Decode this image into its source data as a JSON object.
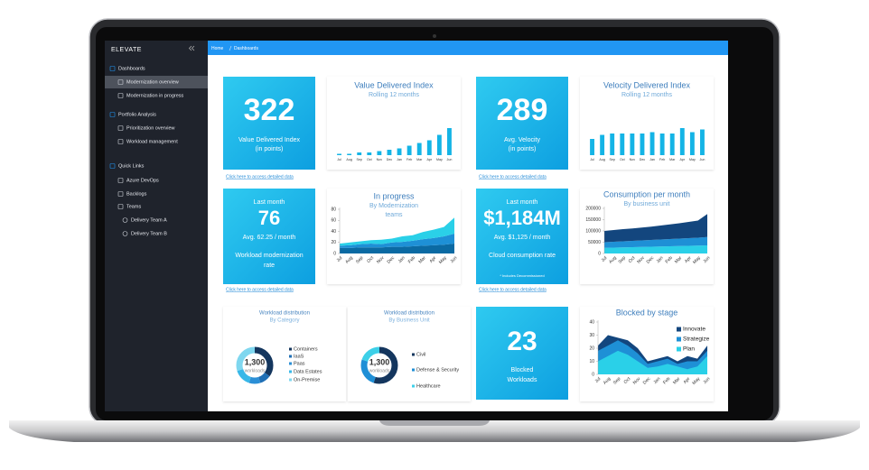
{
  "sidebar": {
    "logo": "ELEVATE",
    "active_item": 1,
    "items": [
      {
        "label": "Dashboards",
        "level": 0
      },
      {
        "label": "Modernization overview",
        "level": 1
      },
      {
        "label": "Modernization in progress",
        "level": 1
      },
      {
        "label": "Portfolio Analysis",
        "level": 0
      },
      {
        "label": "Prioritization overview",
        "level": 1
      },
      {
        "label": "Workload management",
        "level": 1
      },
      {
        "label": "Quick Links",
        "level": 0
      },
      {
        "label": "Azure DevOps",
        "level": 1
      },
      {
        "label": "Backlogs",
        "level": 1
      },
      {
        "label": "Teams",
        "level": 1
      },
      {
        "label": "Delivery Team A",
        "level": 2
      },
      {
        "label": "Delivery Team B",
        "level": 2
      }
    ]
  },
  "breadcrumb": [
    "Home",
    "Dashboards"
  ],
  "tiles": [
    {
      "big": "322",
      "caption": [
        "Value Delivered Index",
        "(in points)"
      ],
      "link": "Click here to access detailed data"
    },
    {
      "big": "289",
      "caption": [
        "Avg. Velocity",
        "(in points)"
      ],
      "link": "Click here to access detailed data"
    },
    {
      "top": "Last month",
      "big": "76",
      "sub": "Avg. 62.25 / month",
      "caption": [
        "Workload modernization",
        "rate"
      ],
      "link": "Click here to access detailed data"
    },
    {
      "top": "Last month",
      "big": "$1,184M",
      "sub": "Avg. $1,125 / month",
      "caption": [
        "Cloud consumption rate"
      ],
      "note": "* Includes Decommissioned",
      "link": "Click here to access detailed data"
    },
    {
      "big": "23",
      "caption": [
        "Blocked",
        "Workloads"
      ]
    }
  ],
  "charts": [
    {
      "type": "bar",
      "title": "Value Delivered Index",
      "subtitle": [
        "Rolling 12 months"
      ],
      "categories": [
        "Jul",
        "Aug",
        "Sep",
        "Oct",
        "Nov",
        "Dec",
        "Jan",
        "Feb",
        "Mar",
        "Apr",
        "May",
        "Jun"
      ],
      "values": [
        1,
        1,
        2,
        2,
        3,
        4,
        5,
        7,
        9,
        11,
        15,
        20
      ],
      "color": "#14b4e6"
    },
    {
      "type": "bar",
      "title": "Velocity Delivered Index",
      "subtitle": [
        "Rolling 12 months"
      ],
      "categories": [
        "Jul",
        "Aug",
        "Sep",
        "Oct",
        "Nov",
        "Dec",
        "Jan",
        "Feb",
        "Mar",
        "Apr",
        "May",
        "Jun"
      ],
      "values": [
        12,
        15,
        16,
        16,
        16,
        16,
        17,
        16,
        16,
        20,
        17,
        19
      ],
      "color": "#14b4e6"
    },
    {
      "type": "stacked-area",
      "title": "In progress",
      "subtitle": [
        "By Modernization",
        "teams"
      ],
      "categories": [
        "Jul",
        "Aug",
        "Sep",
        "Oct",
        "Nov",
        "Dec",
        "Jan",
        "Feb",
        "Mar",
        "Apr",
        "May",
        "Jun"
      ],
      "ylim": [
        0,
        80
      ],
      "yticks": [
        0,
        20,
        40,
        60,
        80
      ],
      "series": [
        {
          "color": "#0b6aa3",
          "values": [
            10,
            10,
            11,
            11,
            11,
            12,
            12,
            13,
            14,
            15,
            16,
            18
          ]
        },
        {
          "color": "#1e90d6",
          "values": [
            4,
            5,
            6,
            7,
            6,
            8,
            9,
            10,
            12,
            13,
            15,
            18
          ]
        },
        {
          "color": "#2ad0e8",
          "values": [
            4,
            5,
            5,
            6,
            8,
            7,
            10,
            10,
            13,
            15,
            17,
            29
          ]
        }
      ]
    },
    {
      "type": "stacked-area",
      "title": "Consumption per month",
      "subtitle": [
        "By business unit"
      ],
      "categories": [
        "Jul",
        "Aug",
        "Sep",
        "Oct",
        "Nov",
        "Dec",
        "Jan",
        "Feb",
        "Mar",
        "Apr",
        "May",
        "Jun"
      ],
      "ylim": [
        0,
        200000
      ],
      "yticks": [
        0,
        50000,
        100000,
        150000,
        200000
      ],
      "series": [
        {
          "color": "#2ad0e8",
          "values": [
            25000,
            26000,
            27000,
            28000,
            29000,
            30000,
            31000,
            32000,
            33000,
            34000,
            35000,
            36000
          ]
        },
        {
          "color": "#1e90d6",
          "values": [
            25000,
            26000,
            27000,
            28000,
            29000,
            30000,
            31000,
            32000,
            33000,
            34000,
            35000,
            37000
          ]
        },
        {
          "color": "#13467e",
          "values": [
            50000,
            52000,
            54000,
            55000,
            57000,
            59000,
            62000,
            65000,
            68000,
            72000,
            76000,
            102000
          ]
        }
      ]
    },
    {
      "type": "area",
      "title": "Blocked by stage",
      "categories": [
        "Jul",
        "Aug",
        "Sep",
        "Oct",
        "Nov",
        "Dec",
        "Jan",
        "Feb",
        "Mar",
        "Apr",
        "May",
        "Jun"
      ],
      "ylim": [
        0,
        40
      ],
      "yticks": [
        0,
        10,
        20,
        30,
        40
      ],
      "series": [
        {
          "name": "Innovate",
          "color": "#13467e",
          "values": [
            22,
            30,
            28,
            26,
            20,
            10,
            12,
            14,
            10,
            14,
            12,
            22
          ]
        },
        {
          "name": "Strategize",
          "color": "#1e90d6",
          "values": [
            18,
            22,
            26,
            22,
            16,
            8,
            10,
            12,
            8,
            10,
            10,
            18
          ]
        },
        {
          "name": "Plan",
          "color": "#2ad0e8",
          "values": [
            10,
            14,
            18,
            15,
            10,
            5,
            6,
            8,
            6,
            4,
            6,
            14
          ]
        }
      ]
    }
  ],
  "donuts": [
    {
      "title": "Workload distribution",
      "subtitle": "By Category",
      "center": "1,300",
      "center_sub": "workloads",
      "segments": [
        {
          "name": "Containers",
          "color": "#14365e",
          "value": 35
        },
        {
          "name": "IaaS",
          "color": "#1f6fb5",
          "value": 10
        },
        {
          "name": "Paas",
          "color": "#2b8fd6",
          "value": 10
        },
        {
          "name": "Data Estates",
          "color": "#38b8e8",
          "value": 15
        },
        {
          "name": "On-Premise",
          "color": "#7fd7ef",
          "value": 30
        }
      ]
    },
    {
      "title": "Workload distribution",
      "subtitle": "By Business Unit",
      "center": "1,300",
      "center_sub": "workloads",
      "segments": [
        {
          "name": "Civil",
          "color": "#14365e",
          "value": 55
        },
        {
          "name": "Defense & Security",
          "color": "#1f8fd6",
          "value": 25
        },
        {
          "name": "Healthcare",
          "color": "#3dd0e8",
          "value": 20
        }
      ]
    }
  ]
}
